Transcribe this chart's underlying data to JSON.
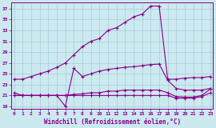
{
  "xlabel": "Windchill (Refroidissement éolien,°C)",
  "bg_color": "#cce9f0",
  "line_color": "#880088",
  "grid_color": "#a8ccd8",
  "x_ticks": [
    0,
    1,
    2,
    3,
    4,
    5,
    6,
    7,
    8,
    9,
    10,
    11,
    12,
    13,
    14,
    15,
    16,
    17,
    18,
    19,
    20,
    21,
    22,
    23
  ],
  "y_ticks": [
    19,
    21,
    23,
    25,
    27,
    29,
    31,
    33,
    35,
    37
  ],
  "xlim": [
    -0.3,
    23.3
  ],
  "ylim": [
    18.5,
    38.2
  ],
  "series": [
    {
      "x": [
        0,
        1,
        2,
        3,
        4,
        5,
        6,
        7,
        8,
        9,
        10,
        11,
        12,
        13,
        14,
        15,
        16,
        17,
        18,
        19,
        20,
        21,
        22,
        23
      ],
      "y": [
        24.0,
        24.0,
        24.5,
        25.0,
        25.5,
        26.2,
        27.0,
        28.5,
        30.0,
        31.0,
        31.5,
        33.0,
        33.5,
        34.5,
        35.5,
        36.0,
        37.5,
        37.5,
        24.0,
        24.0,
        24.2,
        24.3,
        24.3,
        24.5
      ]
    },
    {
      "x": [
        0,
        1,
        2,
        3,
        4,
        5,
        6,
        7,
        8,
        9,
        10,
        11,
        12,
        13,
        14,
        15,
        16,
        17,
        18,
        19,
        20,
        21,
        22,
        23
      ],
      "y": [
        21.5,
        21.0,
        21.0,
        21.0,
        21.0,
        21.0,
        19.0,
        26.0,
        24.5,
        25.0,
        25.5,
        25.8,
        26.0,
        26.2,
        26.3,
        26.5,
        26.7,
        26.8,
        23.8,
        22.3,
        22.0,
        22.0,
        22.0,
        22.3
      ]
    },
    {
      "x": [
        0,
        1,
        2,
        3,
        4,
        5,
        6,
        7,
        8,
        9,
        10,
        11,
        12,
        13,
        14,
        15,
        16,
        17,
        18,
        19,
        20,
        21,
        22,
        23
      ],
      "y": [
        21.0,
        21.0,
        21.0,
        21.0,
        21.0,
        21.0,
        21.0,
        21.2,
        21.3,
        21.5,
        21.5,
        21.8,
        21.8,
        22.0,
        22.0,
        22.0,
        22.0,
        22.0,
        21.5,
        20.8,
        20.7,
        20.7,
        21.0,
        22.2
      ]
    },
    {
      "x": [
        0,
        1,
        2,
        3,
        4,
        5,
        6,
        7,
        8,
        9,
        10,
        11,
        12,
        13,
        14,
        15,
        16,
        17,
        18,
        19,
        20,
        21,
        22,
        23
      ],
      "y": [
        21.0,
        21.0,
        21.0,
        21.0,
        21.0,
        21.0,
        21.0,
        21.0,
        21.0,
        21.0,
        21.0,
        21.0,
        21.0,
        21.0,
        21.0,
        21.0,
        21.0,
        21.0,
        21.0,
        20.5,
        20.5,
        20.5,
        20.8,
        21.5
      ]
    }
  ]
}
